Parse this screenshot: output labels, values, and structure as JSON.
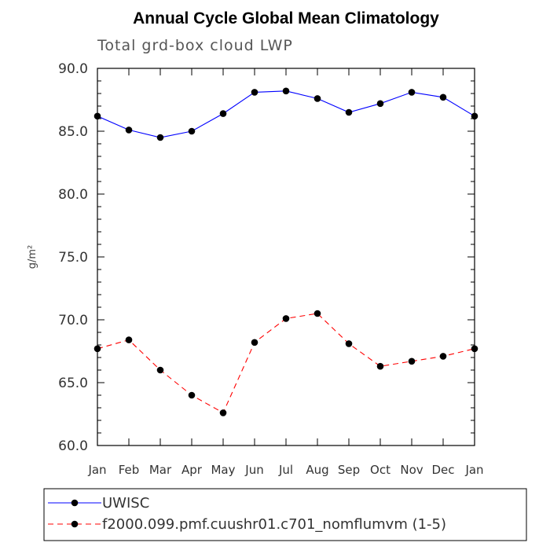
{
  "chart_data": {
    "type": "line",
    "title": "Annual Cycle Global Mean Climatology",
    "subtitle": "Total grd-box cloud LWP",
    "ylabel": "g/m²",
    "xlabel": "",
    "categories": [
      "Jan",
      "Feb",
      "Mar",
      "Apr",
      "May",
      "Jun",
      "Jul",
      "Aug",
      "Sep",
      "Oct",
      "Nov",
      "Dec",
      "Jan"
    ],
    "ylim": [
      60.0,
      90.0
    ],
    "yticks": [
      "60.0",
      "65.0",
      "70.0",
      "75.0",
      "80.0",
      "85.0",
      "90.0"
    ],
    "series": [
      {
        "name": "UWISC",
        "color": "#0000ff",
        "dash": "solid",
        "values": [
          86.2,
          85.1,
          84.5,
          85.0,
          86.4,
          88.1,
          88.2,
          87.6,
          86.5,
          87.2,
          88.1,
          87.7,
          86.2
        ]
      },
      {
        "name": "f2000.099.pmf.cuushr01.c701_nomflumvm (1-5)",
        "color": "#ff0000",
        "dash": "dashed",
        "values": [
          67.7,
          68.4,
          66.0,
          64.0,
          62.6,
          68.2,
          70.1,
          70.5,
          68.1,
          66.3,
          66.7,
          67.1,
          67.7
        ]
      }
    ],
    "grid": false,
    "legend_position": "bottom-left"
  }
}
